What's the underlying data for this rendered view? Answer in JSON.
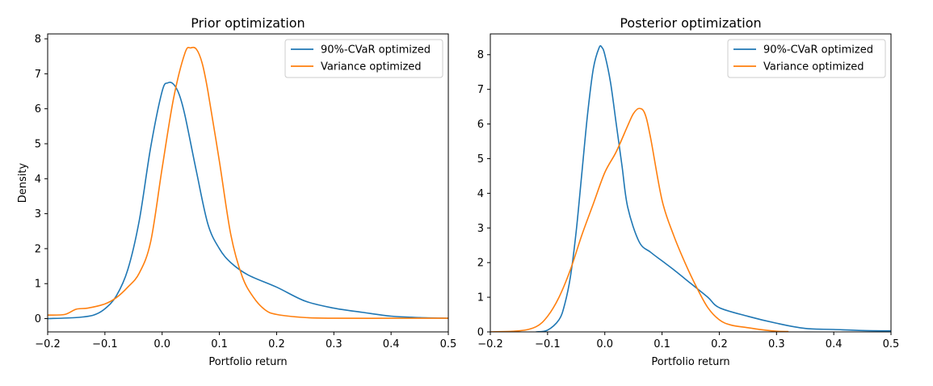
{
  "chart_data": [
    {
      "type": "line",
      "title": "Prior optimization",
      "xlabel": "Portfolio return",
      "ylabel": "Density",
      "xlim": [
        -0.2,
        0.5
      ],
      "ylim": [
        -0.38,
        8.14
      ],
      "xticks": [
        "−0.2",
        "−0.1",
        "0.0",
        "0.1",
        "0.2",
        "0.3",
        "0.4",
        "0.5"
      ],
      "yticks": [
        "0",
        "1",
        "2",
        "3",
        "4",
        "5",
        "6",
        "7",
        "8"
      ],
      "grid": false,
      "legend_position": "top-right",
      "series": [
        {
          "name": "90%-CVaR optimized",
          "color": "#1f77b4",
          "x": [
            -0.2,
            -0.15,
            -0.12,
            -0.1,
            -0.08,
            -0.06,
            -0.04,
            -0.02,
            0,
            0.01,
            0.02,
            0.03,
            0.04,
            0.06,
            0.08,
            0.1,
            0.12,
            0.15,
            0.2,
            0.25,
            0.3,
            0.35,
            0.4,
            0.45,
            0.5
          ],
          "y": [
            0,
            0.03,
            0.1,
            0.28,
            0.65,
            1.4,
            2.8,
            4.9,
            6.5,
            6.74,
            6.7,
            6.4,
            5.8,
            4.2,
            2.7,
            2.0,
            1.6,
            1.25,
            0.9,
            0.5,
            0.3,
            0.18,
            0.07,
            0.03,
            0.01
          ]
        },
        {
          "name": "Variance optimized",
          "color": "#ff7f0e",
          "x": [
            -0.2,
            -0.17,
            -0.15,
            -0.13,
            -0.1,
            -0.08,
            -0.06,
            -0.04,
            -0.02,
            0,
            0.02,
            0.04,
            0.05,
            0.06,
            0.07,
            0.08,
            0.1,
            0.12,
            0.14,
            0.16,
            0.18,
            0.2,
            0.25,
            0.3,
            0.4,
            0.5
          ],
          "y": [
            0.1,
            0.12,
            0.27,
            0.3,
            0.42,
            0.6,
            0.9,
            1.3,
            2.2,
            4.3,
            6.3,
            7.6,
            7.74,
            7.7,
            7.3,
            6.5,
            4.5,
            2.4,
            1.2,
            0.6,
            0.25,
            0.12,
            0.03,
            0.01,
            0.01,
            0.01
          ]
        }
      ]
    },
    {
      "type": "line",
      "title": "Posterior optimization",
      "xlabel": "Portfolio return",
      "ylabel": "",
      "xlim": [
        -0.2,
        0.5
      ],
      "ylim": [
        0,
        8.6
      ],
      "xticks": [
        "−0.2",
        "−0.1",
        "0.0",
        "0.1",
        "0.2",
        "0.3",
        "0.4",
        "0.5"
      ],
      "yticks": [
        "0",
        "1",
        "2",
        "3",
        "4",
        "5",
        "6",
        "7",
        "8"
      ],
      "grid": false,
      "legend_position": "top-right",
      "series": [
        {
          "name": "90%-CVaR optimized",
          "color": "#1f77b4",
          "x": [
            -0.12,
            -0.1,
            -0.08,
            -0.07,
            -0.06,
            -0.05,
            -0.04,
            -0.03,
            -0.02,
            -0.01,
            -0.005,
            0,
            0.01,
            0.02,
            0.03,
            0.04,
            0.06,
            0.08,
            0.1,
            0.12,
            0.15,
            0.18,
            0.2,
            0.25,
            0.3,
            0.35,
            0.4,
            0.45,
            0.5
          ],
          "y": [
            0,
            0.05,
            0.35,
            0.8,
            1.6,
            2.9,
            4.6,
            6.3,
            7.6,
            8.2,
            8.21,
            8.0,
            7.2,
            6.0,
            4.8,
            3.6,
            2.6,
            2.3,
            2.05,
            1.8,
            1.4,
            1.0,
            0.7,
            0.45,
            0.25,
            0.1,
            0.07,
            0.04,
            0.03
          ]
        },
        {
          "name": "Variance optimized",
          "color": "#ff7f0e",
          "x": [
            -0.2,
            -0.15,
            -0.12,
            -0.1,
            -0.08,
            -0.06,
            -0.04,
            -0.02,
            0,
            0.02,
            0.04,
            0.05,
            0.06,
            0.07,
            0.08,
            0.1,
            0.12,
            0.14,
            0.16,
            0.18,
            0.2,
            0.22,
            0.25,
            0.28,
            0.3,
            0.32
          ],
          "y": [
            0,
            0.03,
            0.15,
            0.45,
            1.0,
            1.8,
            2.8,
            3.7,
            4.6,
            5.2,
            5.95,
            6.3,
            6.45,
            6.3,
            5.6,
            3.8,
            2.8,
            2.0,
            1.3,
            0.7,
            0.35,
            0.2,
            0.12,
            0.05,
            0.02,
            0.01
          ]
        }
      ]
    }
  ]
}
